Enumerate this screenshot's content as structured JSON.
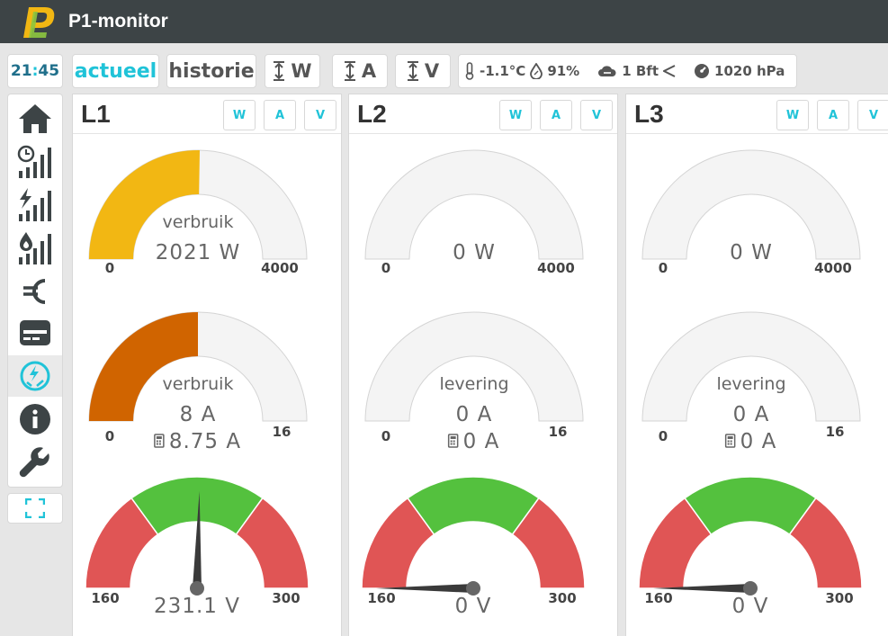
{
  "app": {
    "title": "P1-monitor"
  },
  "toolbar": {
    "clock_hours": "21",
    "clock_minutes": "45",
    "actueel": "actueel",
    "historie": "historie",
    "unit_w": "W",
    "unit_a": "A",
    "unit_v": "V"
  },
  "weather": {
    "temperature": "-1.1°C",
    "humidity": "91%",
    "wind": "1 Bft",
    "pressure": "1020 hPa"
  },
  "sidebar": {
    "items": [
      {
        "icon": "home-icon"
      },
      {
        "icon": "clock-bars-icon"
      },
      {
        "icon": "electric-bars-icon"
      },
      {
        "icon": "gas-bars-icon"
      },
      {
        "icon": "euro-icon"
      },
      {
        "icon": "meter-icon"
      },
      {
        "icon": "phases-icon",
        "active": true
      },
      {
        "icon": "info-icon"
      },
      {
        "icon": "wrench-icon"
      }
    ],
    "fullscreen_icon": "fullscreen-icon"
  },
  "colors": {
    "accent": "#20c3d8",
    "power": "#f2b713",
    "current": "#d06400",
    "voltage_ok": "#54c13e",
    "voltage_bad": "#e05555",
    "gauge_bg": "#f4f4f4"
  },
  "phases": [
    {
      "title": "L1",
      "buttons": [
        "W",
        "A",
        "V"
      ],
      "power": {
        "label": "verbruik",
        "value": 2021,
        "display": "2021 W",
        "min": "0",
        "max": "4000"
      },
      "current": {
        "label": "verbruik",
        "value": 8,
        "display": "8 A",
        "calc": "8.75 A",
        "min": "0",
        "max": "16"
      },
      "voltage": {
        "value": 231.1,
        "display": "231.1 V",
        "min": "160",
        "max": "300"
      }
    },
    {
      "title": "L2",
      "buttons": [
        "W",
        "A",
        "V"
      ],
      "power": {
        "label": "",
        "value": 0,
        "display": "0 W",
        "min": "0",
        "max": "4000"
      },
      "current": {
        "label": "levering",
        "value": 0,
        "display": "0 A",
        "calc": "0 A",
        "min": "0",
        "max": "16"
      },
      "voltage": {
        "value": 0,
        "display": "0 V",
        "min": "160",
        "max": "300"
      }
    },
    {
      "title": "L3",
      "buttons": [
        "W",
        "A",
        "V"
      ],
      "power": {
        "label": "",
        "value": 0,
        "display": "0 W",
        "min": "0",
        "max": "4000"
      },
      "current": {
        "label": "levering",
        "value": 0,
        "display": "0 A",
        "calc": "0 A",
        "min": "0",
        "max": "16"
      },
      "voltage": {
        "value": 0,
        "display": "0 V",
        "min": "160",
        "max": "300"
      }
    }
  ]
}
